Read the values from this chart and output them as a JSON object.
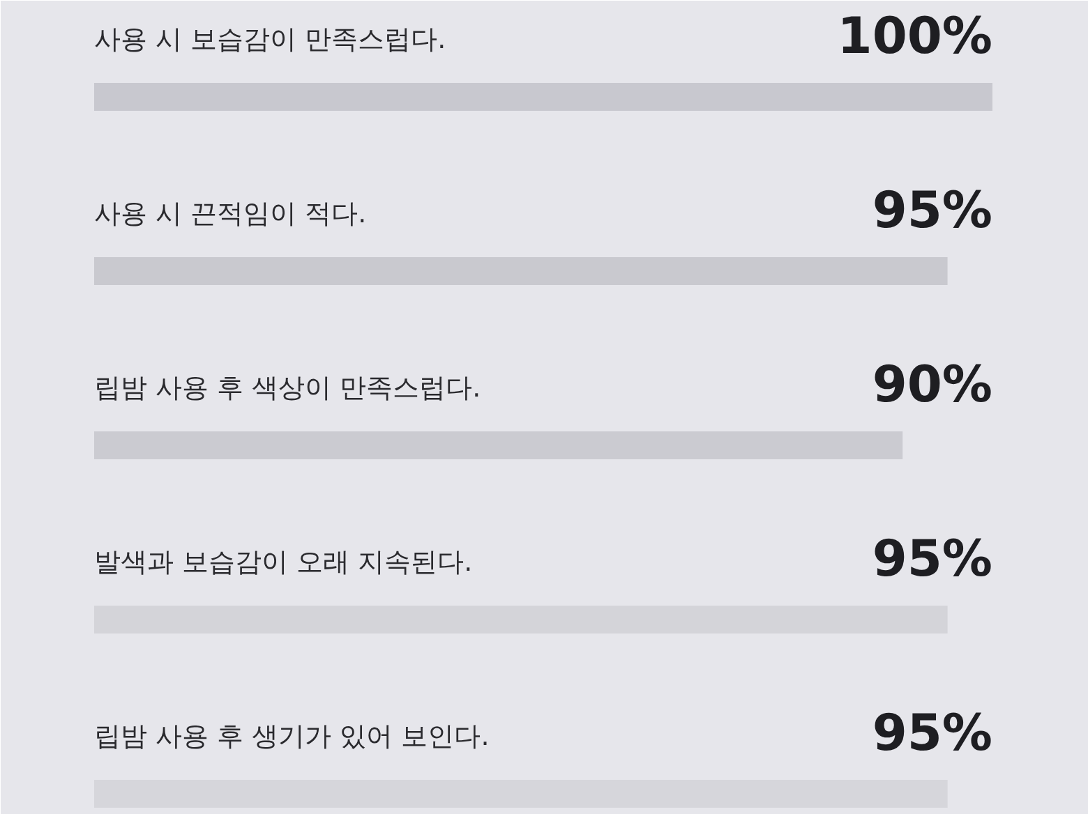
{
  "chart_data": {
    "type": "bar",
    "orientation": "horizontal",
    "categories": [
      "사용 시 보습감이 만족스럽다.",
      "사용 시 끈적임이 적다.",
      "립밤 사용 후 색상이 만족스럽다.",
      "발색과 보습감이 오래 지속된다.",
      "립밤 사용 후 생기가 있어 보인다."
    ],
    "values": [
      100,
      95,
      90,
      95,
      95
    ],
    "value_labels": [
      "100%",
      "95%",
      "90%",
      "95%",
      "95%"
    ],
    "colors": [
      "#c8c8cf",
      "#c9c9cf",
      "#cbcbd1",
      "#d4d4d9",
      "#d6d6db"
    ],
    "xlim": [
      0,
      100
    ],
    "tick_labels": "y"
  }
}
